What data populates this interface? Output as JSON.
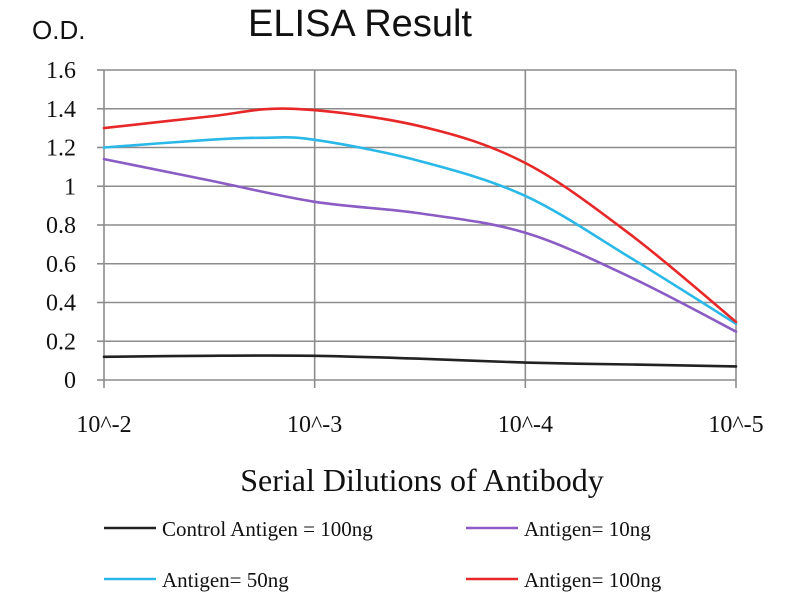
{
  "chart_data": {
    "type": "line",
    "title": "ELISA Result",
    "ylabel": "O.D.",
    "xlabel": "Serial Dilutions of Antibody",
    "categories": [
      "10^-2",
      "10^-3",
      "10^-4",
      "10^-5"
    ],
    "yticks": [
      "0",
      "0.2",
      "0.4",
      "0.6",
      "0.8",
      "1",
      "1.2",
      "1.4",
      "1.6"
    ],
    "ylim": [
      0,
      1.6
    ],
    "grid": true,
    "legend_position": "bottom",
    "series": [
      {
        "name": "Control Antigen = 100ng",
        "color": "#222222",
        "points": [
          [
            0,
            0.12
          ],
          [
            0.5,
            0.125
          ],
          [
            1,
            0.125
          ],
          [
            1.5,
            0.11
          ],
          [
            2,
            0.09
          ],
          [
            2.5,
            0.08
          ],
          [
            3,
            0.07
          ]
        ]
      },
      {
        "name": "Antigen= 10ng",
        "color": "#8a5cc4",
        "points": [
          [
            0,
            1.14
          ],
          [
            0.5,
            1.03
          ],
          [
            1,
            0.92
          ],
          [
            1.5,
            0.86
          ],
          [
            2,
            0.76
          ],
          [
            2.5,
            0.53
          ],
          [
            3,
            0.25
          ]
        ]
      },
      {
        "name": "Antigen= 50ng",
        "color": "#2ab8e8",
        "points": [
          [
            0,
            1.2
          ],
          [
            0.5,
            1.24
          ],
          [
            0.75,
            1.25
          ],
          [
            1,
            1.24
          ],
          [
            1.5,
            1.13
          ],
          [
            2,
            0.95
          ],
          [
            2.5,
            0.63
          ],
          [
            3,
            0.29
          ]
        ]
      },
      {
        "name": "Antigen= 100ng",
        "color": "#e82828",
        "points": [
          [
            0,
            1.3
          ],
          [
            0.5,
            1.36
          ],
          [
            0.9,
            1.4
          ],
          [
            1.5,
            1.31
          ],
          [
            2,
            1.12
          ],
          [
            2.5,
            0.75
          ],
          [
            3,
            0.3
          ]
        ]
      }
    ]
  }
}
